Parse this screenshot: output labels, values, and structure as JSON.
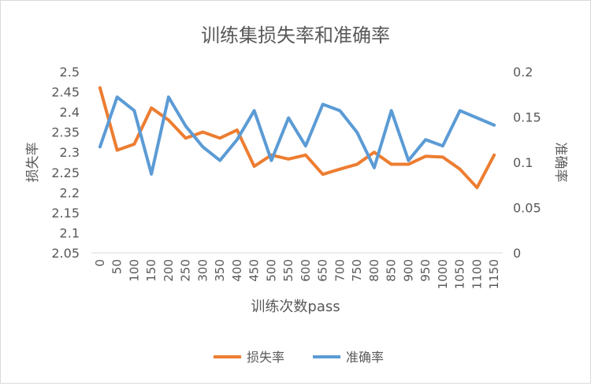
{
  "chart_data": {
    "type": "line",
    "title": "训练集损失率和准确率",
    "xlabel": "训练次数pass",
    "ylabel_left": "损失率",
    "ylabel_right": "准确率",
    "categories": [
      "0",
      "50",
      "100",
      "150",
      "200",
      "250",
      "300",
      "350",
      "400",
      "450",
      "500",
      "550",
      "600",
      "650",
      "700",
      "750",
      "800",
      "850",
      "900",
      "950",
      "1000",
      "1050",
      "1100",
      "1150"
    ],
    "y_left": {
      "min": 2.05,
      "max": 2.5,
      "ticks": [
        "2.05",
        "2.1",
        "2.15",
        "2.2",
        "2.25",
        "2.3",
        "2.35",
        "2.4",
        "2.45",
        "2.5"
      ]
    },
    "y_right": {
      "min": 0,
      "max": 0.2,
      "ticks": [
        "0",
        "0.05",
        "0.1",
        "0.15",
        "0.2"
      ]
    },
    "legend_position": "bottom",
    "grid": false,
    "series": [
      {
        "name": "损失率",
        "axis": "left",
        "color": "#ED7D31",
        "values": [
          2.46,
          2.305,
          2.32,
          2.41,
          2.38,
          2.335,
          2.35,
          2.335,
          2.355,
          2.265,
          2.293,
          2.283,
          2.293,
          2.245,
          2.258,
          2.27,
          2.3,
          2.27,
          2.27,
          2.29,
          2.288,
          2.258,
          2.212,
          2.293
        ]
      },
      {
        "name": "准确率",
        "axis": "right",
        "color": "#5B9BD5",
        "values": [
          0.117,
          0.172,
          0.157,
          0.087,
          0.172,
          0.14,
          0.117,
          0.102,
          0.125,
          0.157,
          0.102,
          0.149,
          0.118,
          0.164,
          0.157,
          0.133,
          0.094,
          0.157,
          0.102,
          0.125,
          0.118,
          0.157,
          0.149,
          0.141
        ]
      }
    ]
  }
}
